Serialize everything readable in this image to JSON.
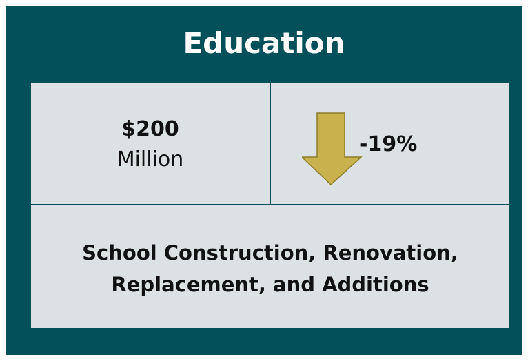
{
  "title": "Education",
  "amount": "$200",
  "unit": "Million",
  "change": "-19%",
  "description": [
    "School Construction, Renovation,",
    "Replacement, and Additions"
  ]
}
